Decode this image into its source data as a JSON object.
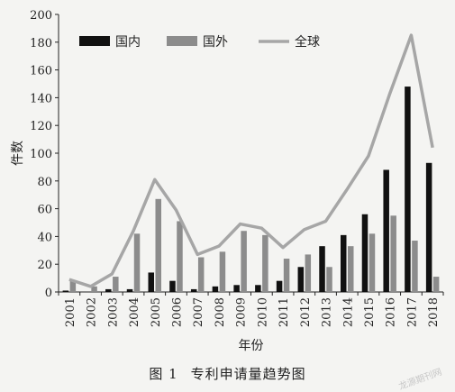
{
  "chart_data": {
    "type": "bar",
    "categories": [
      "2001",
      "2002",
      "2003",
      "2004",
      "2005",
      "2006",
      "2007",
      "2008",
      "2009",
      "2010",
      "2011",
      "2012",
      "2013",
      "2014",
      "2015",
      "2016",
      "2017",
      "2018"
    ],
    "series": [
      {
        "name": "国内",
        "kind": "bar",
        "color": "#111111",
        "values": [
          1,
          0,
          2,
          2,
          14,
          8,
          2,
          4,
          5,
          5,
          8,
          18,
          33,
          41,
          56,
          88,
          148,
          93
        ]
      },
      {
        "name": "国外",
        "kind": "bar",
        "color": "#8c8c8c",
        "values": [
          8,
          4,
          11,
          42,
          67,
          51,
          25,
          29,
          44,
          41,
          24,
          27,
          18,
          33,
          42,
          55,
          37,
          11
        ]
      },
      {
        "name": "全球",
        "kind": "line",
        "color": "#a6a6a6",
        "values": [
          9,
          4,
          13,
          44,
          81,
          59,
          27,
          33,
          49,
          46,
          32,
          45,
          51,
          74,
          98,
          143,
          185,
          104
        ]
      }
    ],
    "xlabel": "年份",
    "ylabel": "件数",
    "ylim": [
      0,
      200
    ],
    "yticks": [
      0,
      20,
      40,
      60,
      80,
      100,
      120,
      140,
      160,
      180,
      200
    ],
    "legend_position": "top-left",
    "grid": false
  },
  "caption": {
    "figure_no": "图 1",
    "title": "专利申请量趋势图"
  },
  "watermark": "龙源期刊网"
}
